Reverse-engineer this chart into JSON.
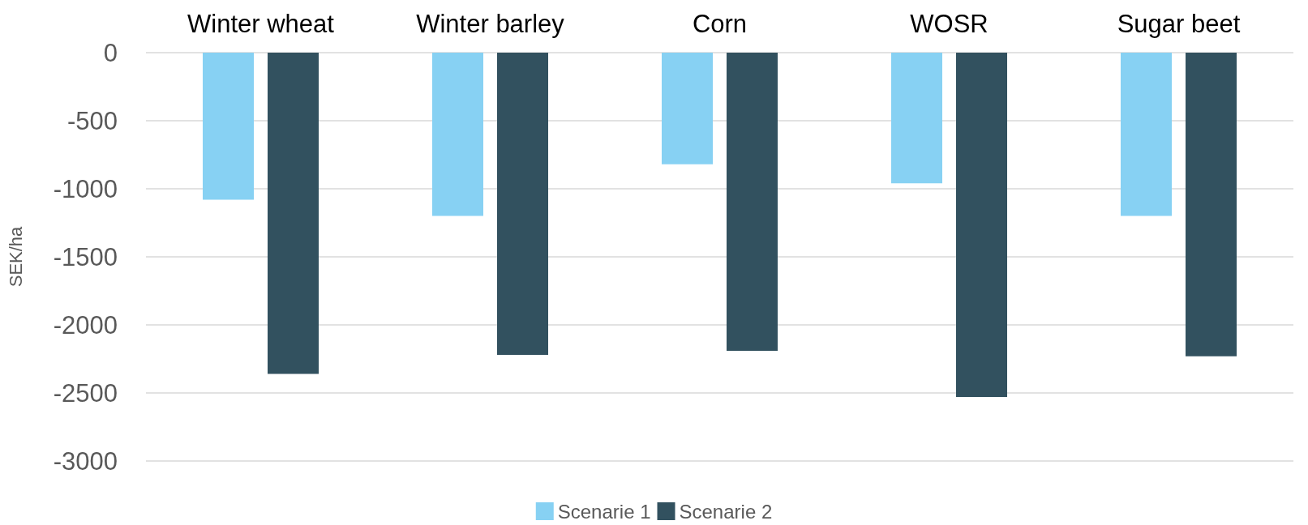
{
  "chart_data": {
    "type": "bar",
    "ylabel": "SEK/ha",
    "categories": [
      "Winter wheat",
      "Winter barley",
      "Corn",
      "WOSR",
      "Sugar beet"
    ],
    "series": [
      {
        "name": "Scenarie 1",
        "color": "#87d1f3",
        "values": [
          -1080,
          -1200,
          -820,
          -960,
          -1200
        ]
      },
      {
        "name": "Scenarie 2",
        "color": "#32515f",
        "values": [
          -2360,
          -2220,
          -2190,
          -2530,
          -2230
        ]
      }
    ],
    "ylim": [
      -3000,
      0
    ],
    "yticks": [
      -3000,
      -2500,
      -2000,
      -1500,
      -1000,
      -500,
      0
    ],
    "grid": "y",
    "legend": "bottom"
  }
}
